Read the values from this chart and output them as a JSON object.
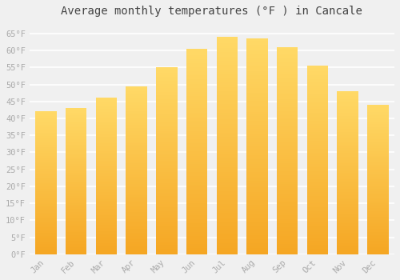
{
  "title": "Average monthly temperatures (°F ) in Cancale",
  "months": [
    "Jan",
    "Feb",
    "Mar",
    "Apr",
    "May",
    "Jun",
    "Jul",
    "Aug",
    "Sep",
    "Oct",
    "Nov",
    "Dec"
  ],
  "values": [
    42,
    43,
    46,
    49.5,
    55,
    60.5,
    64,
    63.5,
    61,
    55.5,
    48,
    44
  ],
  "bar_color_bottom": "#F5A623",
  "bar_color_top": "#FFD966",
  "ylim": [
    0,
    68
  ],
  "yticks": [
    0,
    5,
    10,
    15,
    20,
    25,
    30,
    35,
    40,
    45,
    50,
    55,
    60,
    65
  ],
  "ytick_labels": [
    "0°F",
    "5°F",
    "10°F",
    "15°F",
    "20°F",
    "25°F",
    "30°F",
    "35°F",
    "40°F",
    "45°F",
    "50°F",
    "55°F",
    "60°F",
    "65°F"
  ],
  "background_color": "#f0f0f0",
  "grid_color": "#ffffff",
  "title_fontsize": 10,
  "tick_fontsize": 7.5,
  "tick_color": "#aaaaaa",
  "font_family": "monospace",
  "bar_width": 0.7,
  "n_gradient_steps": 100
}
